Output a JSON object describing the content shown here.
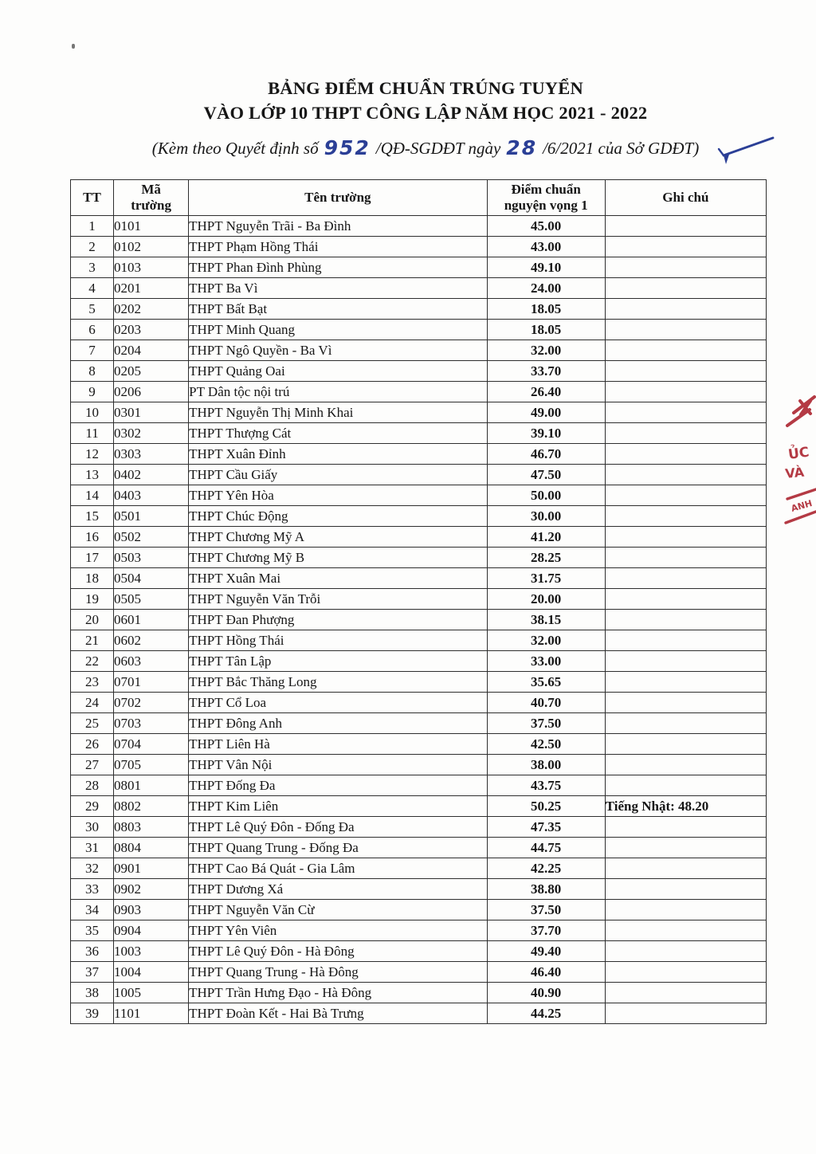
{
  "header": {
    "title_line1": "BẢNG ĐIỂM CHUẨN TRÚNG TUYỂN",
    "title_line2": "VÀO LỚP 10 THPT CÔNG LẬP NĂM HỌC 2021 - 2022",
    "subtitle": {
      "prefix": "(Kèm theo Quyết định số",
      "decision_number": "952",
      "middle": "/QĐ-SGDĐT ngày",
      "day": "28",
      "suffix": "/6/2021 của Sở GDĐT)"
    }
  },
  "colors": {
    "ink_black": "#161616",
    "handwriting_blue": "#2b3f96",
    "stamp_red": "#b43a44"
  },
  "icons": {
    "pen_mark": "blue-pen-checkmark",
    "stamp": "partial-red-stamp"
  },
  "stamp": {
    "fragments": [
      "ỦC",
      "VÀ",
      "ANH"
    ]
  },
  "table": {
    "columns": [
      "TT",
      "Mã trường",
      "Tên trường",
      "Điểm chuẩn nguyện vọng 1",
      "Ghi chú"
    ],
    "rows": [
      {
        "tt": "1",
        "code": "0101",
        "name": "THPT Nguyễn Trãi - Ba Đình",
        "score": "45.00",
        "note": ""
      },
      {
        "tt": "2",
        "code": "0102",
        "name": "THPT Phạm Hồng Thái",
        "score": "43.00",
        "note": ""
      },
      {
        "tt": "3",
        "code": "0103",
        "name": "THPT Phan Đình Phùng",
        "score": "49.10",
        "note": ""
      },
      {
        "tt": "4",
        "code": "0201",
        "name": "THPT Ba Vì",
        "score": "24.00",
        "note": ""
      },
      {
        "tt": "5",
        "code": "0202",
        "name": "THPT Bất Bạt",
        "score": "18.05",
        "note": ""
      },
      {
        "tt": "6",
        "code": "0203",
        "name": "THPT Minh Quang",
        "score": "18.05",
        "note": ""
      },
      {
        "tt": "7",
        "code": "0204",
        "name": "THPT Ngô Quyền - Ba Vì",
        "score": "32.00",
        "note": ""
      },
      {
        "tt": "8",
        "code": "0205",
        "name": "THPT Quảng Oai",
        "score": "33.70",
        "note": ""
      },
      {
        "tt": "9",
        "code": "0206",
        "name": "PT Dân tộc nội trú",
        "score": "26.40",
        "note": ""
      },
      {
        "tt": "10",
        "code": "0301",
        "name": "THPT Nguyễn Thị Minh Khai",
        "score": "49.00",
        "note": ""
      },
      {
        "tt": "11",
        "code": "0302",
        "name": "THPT Thượng Cát",
        "score": "39.10",
        "note": ""
      },
      {
        "tt": "12",
        "code": "0303",
        "name": "THPT Xuân Đỉnh",
        "score": "46.70",
        "note": ""
      },
      {
        "tt": "13",
        "code": "0402",
        "name": "THPT Cầu Giấy",
        "score": "47.50",
        "note": ""
      },
      {
        "tt": "14",
        "code": "0403",
        "name": "THPT Yên Hòa",
        "score": "50.00",
        "note": ""
      },
      {
        "tt": "15",
        "code": "0501",
        "name": "THPT Chúc Động",
        "score": "30.00",
        "note": ""
      },
      {
        "tt": "16",
        "code": "0502",
        "name": "THPT Chương Mỹ A",
        "score": "41.20",
        "note": ""
      },
      {
        "tt": "17",
        "code": "0503",
        "name": "THPT Chương Mỹ B",
        "score": "28.25",
        "note": ""
      },
      {
        "tt": "18",
        "code": "0504",
        "name": "THPT Xuân Mai",
        "score": "31.75",
        "note": ""
      },
      {
        "tt": "19",
        "code": "0505",
        "name": "THPT Nguyễn Văn Trỗi",
        "score": "20.00",
        "note": ""
      },
      {
        "tt": "20",
        "code": "0601",
        "name": "THPT Đan Phượng",
        "score": "38.15",
        "note": ""
      },
      {
        "tt": "21",
        "code": "0602",
        "name": "THPT Hồng Thái",
        "score": "32.00",
        "note": ""
      },
      {
        "tt": "22",
        "code": "0603",
        "name": "THPT Tân Lập",
        "score": "33.00",
        "note": ""
      },
      {
        "tt": "23",
        "code": "0701",
        "name": "THPT Bắc Thăng Long",
        "score": "35.65",
        "note": ""
      },
      {
        "tt": "24",
        "code": "0702",
        "name": "THPT Cổ Loa",
        "score": "40.70",
        "note": ""
      },
      {
        "tt": "25",
        "code": "0703",
        "name": "THPT Đông Anh",
        "score": "37.50",
        "note": ""
      },
      {
        "tt": "26",
        "code": "0704",
        "name": "THPT Liên Hà",
        "score": "42.50",
        "note": ""
      },
      {
        "tt": "27",
        "code": "0705",
        "name": "THPT Vân Nội",
        "score": "38.00",
        "note": ""
      },
      {
        "tt": "28",
        "code": "0801",
        "name": "THPT Đống Đa",
        "score": "43.75",
        "note": ""
      },
      {
        "tt": "29",
        "code": "0802",
        "name": "THPT Kim Liên",
        "score": "50.25",
        "note": "Tiếng Nhật: 48.20"
      },
      {
        "tt": "30",
        "code": "0803",
        "name": "THPT Lê Quý Đôn - Đống Đa",
        "score": "47.35",
        "note": ""
      },
      {
        "tt": "31",
        "code": "0804",
        "name": "THPT Quang Trung - Đống Đa",
        "score": "44.75",
        "note": ""
      },
      {
        "tt": "32",
        "code": "0901",
        "name": "THPT Cao Bá Quát - Gia Lâm",
        "score": "42.25",
        "note": ""
      },
      {
        "tt": "33",
        "code": "0902",
        "name": "THPT Dương Xá",
        "score": "38.80",
        "note": ""
      },
      {
        "tt": "34",
        "code": "0903",
        "name": "THPT Nguyễn Văn Cừ",
        "score": "37.50",
        "note": ""
      },
      {
        "tt": "35",
        "code": "0904",
        "name": "THPT Yên Viên",
        "score": "37.70",
        "note": ""
      },
      {
        "tt": "36",
        "code": "1003",
        "name": "THPT Lê Quý Đôn - Hà Đông",
        "score": "49.40",
        "note": ""
      },
      {
        "tt": "37",
        "code": "1004",
        "name": "THPT Quang Trung - Hà Đông",
        "score": "46.40",
        "note": ""
      },
      {
        "tt": "38",
        "code": "1005",
        "name": "THPT Trần Hưng Đạo - Hà Đông",
        "score": "40.90",
        "note": ""
      },
      {
        "tt": "39",
        "code": "1101",
        "name": "THPT Đoàn Kết - Hai Bà Trưng",
        "score": "44.25",
        "note": ""
      }
    ]
  }
}
